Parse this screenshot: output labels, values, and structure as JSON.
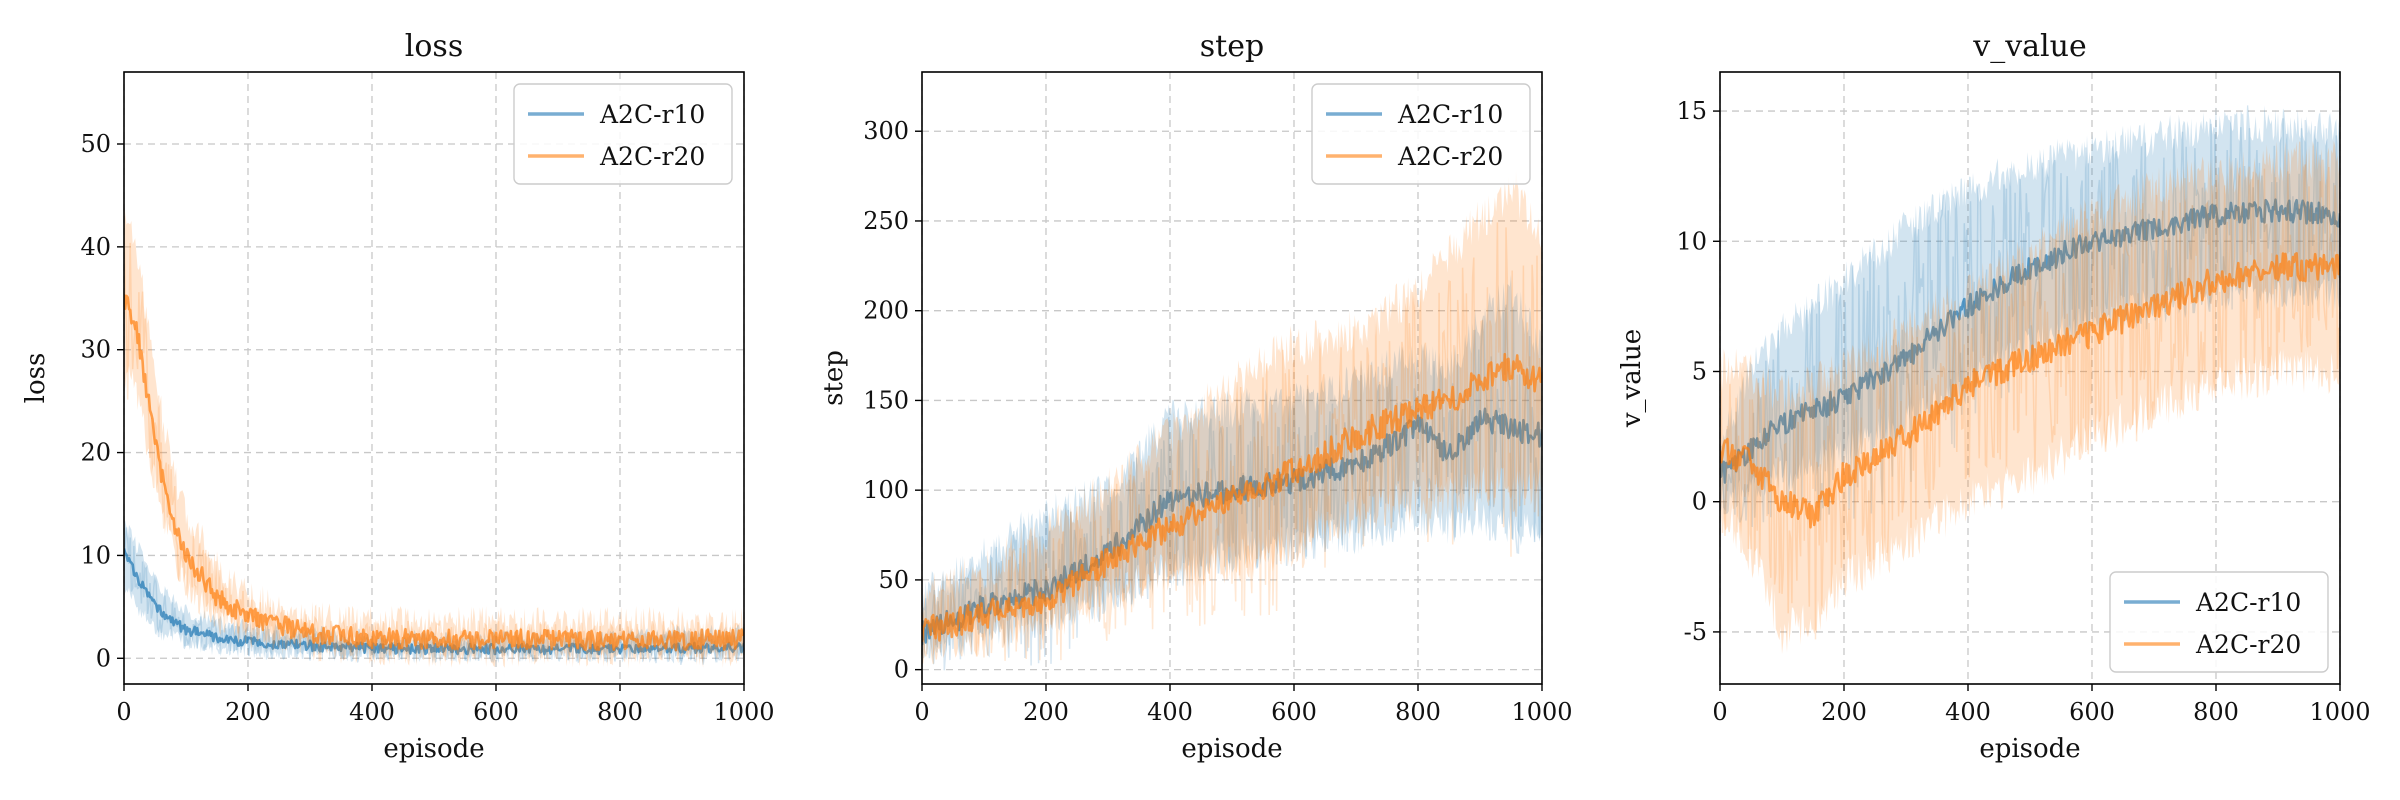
{
  "chart_data": [
    {
      "type": "line",
      "title": "loss",
      "xlabel": "episode",
      "ylabel": "loss",
      "xlim": [
        0,
        1000
      ],
      "ylim": [
        -2.5,
        57
      ],
      "xticks": [
        0,
        200,
        400,
        600,
        800,
        1000
      ],
      "yticks": [
        0,
        10,
        20,
        30,
        40,
        50
      ],
      "ytick_labels": [
        "0",
        "10",
        "20",
        "30",
        "40",
        "50"
      ],
      "grid": true,
      "legend": "top-right",
      "series": [
        {
          "name": "A2C-r10",
          "color": "#1f77b4",
          "x": [
            0,
            20,
            40,
            60,
            80,
            100,
            150,
            200,
            300,
            400,
            500,
            600,
            700,
            800,
            900,
            1000
          ],
          "y": [
            10.5,
            8,
            6,
            4.5,
            3.5,
            2.8,
            2,
            1.6,
            1.2,
            1,
            0.9,
            0.9,
            0.9,
            0.9,
            1,
            1
          ],
          "band_lower": [
            7,
            5,
            3.5,
            2.5,
            2,
            1.5,
            1,
            0.8,
            0.5,
            0.3,
            0.3,
            0.3,
            0.3,
            0.3,
            0.3,
            0.3
          ],
          "band_upper": [
            13,
            11,
            9,
            7,
            5.5,
            4.5,
            3.5,
            3,
            2.5,
            2,
            2,
            2,
            2,
            2,
            2.5,
            2.5
          ],
          "noise": 0.5
        },
        {
          "name": "A2C-r20",
          "color": "#ff7f0e",
          "x": [
            0,
            20,
            40,
            60,
            80,
            100,
            150,
            200,
            300,
            400,
            500,
            600,
            700,
            800,
            900,
            1000
          ],
          "y": [
            35,
            32,
            25,
            18,
            13,
            10,
            6,
            4,
            2.5,
            2,
            1.8,
            1.8,
            1.8,
            1.8,
            1.8,
            1.8
          ],
          "band_lower": [
            28,
            26,
            20,
            14,
            10,
            7,
            4,
            2.5,
            1.2,
            0.8,
            0.6,
            0.6,
            0.6,
            0.6,
            0.6,
            0.6
          ],
          "band_upper": [
            44,
            40,
            32,
            24,
            18,
            14,
            9,
            6,
            4,
            3.5,
            3.5,
            3.5,
            3.5,
            3.5,
            3.5,
            3.5
          ],
          "noise": 1.0
        }
      ]
    },
    {
      "type": "line",
      "title": "step",
      "xlabel": "episode",
      "ylabel": "step",
      "xlim": [
        0,
        1000
      ],
      "ylim": [
        -8,
        333
      ],
      "xticks": [
        0,
        200,
        400,
        600,
        800,
        1000
      ],
      "yticks": [
        0,
        50,
        100,
        150,
        200,
        250,
        300
      ],
      "ytick_labels": [
        "0",
        "50",
        "100",
        "150",
        "200",
        "250",
        "300"
      ],
      "grid": true,
      "legend": "top-right",
      "series": [
        {
          "name": "A2C-r10",
          "color": "#1f77b4",
          "x": [
            0,
            100,
            200,
            300,
            400,
            500,
            600,
            700,
            800,
            850,
            900,
            950,
            1000
          ],
          "y": [
            20,
            35,
            45,
            65,
            95,
            100,
            105,
            115,
            135,
            120,
            140,
            135,
            130
          ],
          "band_lower": [
            12,
            20,
            30,
            40,
            55,
            65,
            70,
            75,
            85,
            80,
            85,
            80,
            80
          ],
          "band_upper": [
            40,
            65,
            85,
            100,
            140,
            145,
            150,
            160,
            175,
            165,
            195,
            210,
            180
          ],
          "noise": 7
        },
        {
          "name": "A2C-r20",
          "color": "#ff7f0e",
          "x": [
            0,
            100,
            200,
            300,
            400,
            500,
            600,
            700,
            800,
            850,
            900,
            950,
            1000
          ],
          "y": [
            22,
            30,
            40,
            60,
            80,
            95,
            110,
            130,
            145,
            150,
            160,
            170,
            160
          ],
          "band_lower": [
            15,
            20,
            28,
            40,
            55,
            60,
            70,
            85,
            95,
            95,
            100,
            105,
            100
          ],
          "band_upper": [
            40,
            55,
            75,
            100,
            130,
            160,
            180,
            190,
            210,
            230,
            250,
            270,
            240
          ],
          "noise": 8
        }
      ]
    },
    {
      "type": "line",
      "title": "v_value",
      "xlabel": "episode",
      "ylabel": "v_value",
      "xlim": [
        0,
        1000
      ],
      "ylim": [
        -7,
        16.5
      ],
      "xticks": [
        0,
        200,
        400,
        600,
        800,
        1000
      ],
      "yticks": [
        -5,
        0,
        5,
        10,
        15
      ],
      "ytick_labels": [
        "-5",
        "0",
        "5",
        "10",
        "15"
      ],
      "grid": true,
      "legend": "bottom-right",
      "series": [
        {
          "name": "A2C-r10",
          "color": "#1f77b4",
          "x": [
            0,
            50,
            100,
            200,
            300,
            400,
            500,
            600,
            700,
            800,
            900,
            1000
          ],
          "y": [
            1,
            2,
            3,
            4,
            5.5,
            7.5,
            9,
            10,
            10.5,
            11,
            11.2,
            11
          ],
          "band_lower": [
            0,
            0.5,
            1,
            2,
            3,
            4.5,
            6,
            7,
            7.5,
            8,
            8,
            8
          ],
          "band_upper": [
            2,
            5,
            6.5,
            8.5,
            10.5,
            12,
            13,
            13.5,
            14,
            14.5,
            14.5,
            14.2
          ],
          "noise": 0.45
        },
        {
          "name": "A2C-r20",
          "color": "#ff7f0e",
          "x": [
            0,
            50,
            100,
            150,
            200,
            300,
            400,
            500,
            600,
            700,
            800,
            900,
            1000
          ],
          "y": [
            2,
            1.5,
            0,
            -0.5,
            1,
            2.5,
            4.5,
            5.5,
            6.5,
            7.5,
            8.5,
            9,
            9
          ],
          "band_lower": [
            0,
            -2,
            -5,
            -4.5,
            -3,
            -1.5,
            0,
            1,
            2.5,
            3.5,
            4.5,
            5,
            5
          ],
          "band_upper": [
            5,
            5,
            4,
            4.5,
            5,
            6.5,
            8,
            9.5,
            11,
            12,
            12.5,
            13,
            13
          ],
          "noise": 0.55
        }
      ]
    }
  ]
}
